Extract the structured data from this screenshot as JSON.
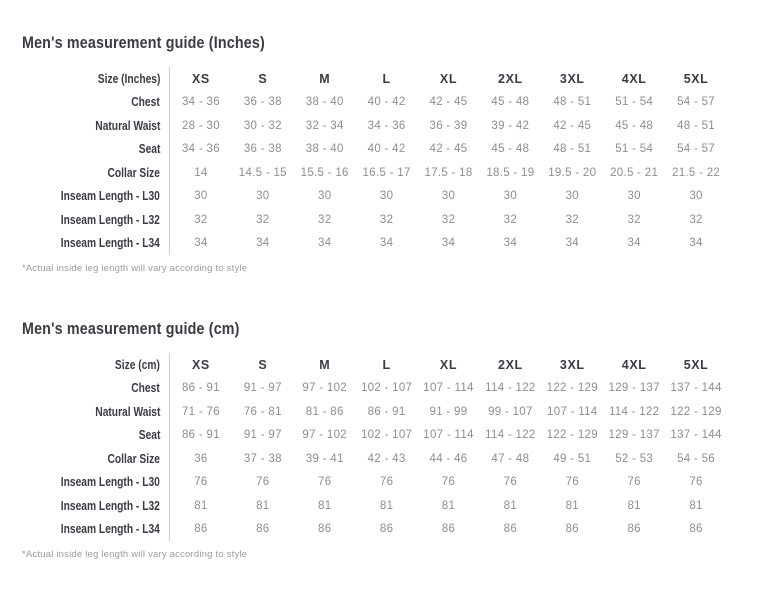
{
  "colors": {
    "title_text": "#3b3b45",
    "header_text": "#3b3b44",
    "value_text": "#8d8d94",
    "divider_line": "#cfd0d4",
    "footnote_text": "#9c9ca2",
    "background": "#ffffff"
  },
  "tables": [
    {
      "title": "Men's measurement guide (Inches)",
      "size_label": "Size (Inches)",
      "columns": [
        "XS",
        "S",
        "M",
        "L",
        "XL",
        "2XL",
        "3XL",
        "4XL",
        "5XL"
      ],
      "rows": [
        {
          "label": "Chest",
          "values": [
            "34 - 36",
            "36 - 38",
            "38 - 40",
            "40 - 42",
            "42 - 45",
            "45 - 48",
            "48 - 51",
            "51 - 54",
            "54 - 57"
          ]
        },
        {
          "label": "Natural Waist",
          "values": [
            "28 - 30",
            "30 - 32",
            "32 - 34",
            "34 - 36",
            "36 - 39",
            "39 - 42",
            "42 - 45",
            "45 - 48",
            "48 - 51"
          ]
        },
        {
          "label": "Seat",
          "values": [
            "34 - 36",
            "36 - 38",
            "38 - 40",
            "40 - 42",
            "42 - 45",
            "45 - 48",
            "48 - 51",
            "51 - 54",
            "54 - 57"
          ]
        },
        {
          "label": "Collar Size",
          "values": [
            "14",
            "14.5 - 15",
            "15.5 - 16",
            "16.5 - 17",
            "17.5 - 18",
            "18.5 - 19",
            "19.5 - 20",
            "20.5 - 21",
            "21.5 - 22"
          ]
        },
        {
          "label": "Inseam Length - L30",
          "values": [
            "30",
            "30",
            "30",
            "30",
            "30",
            "30",
            "30",
            "30",
            "30"
          ]
        },
        {
          "label": "Inseam Length - L32",
          "values": [
            "32",
            "32",
            "32",
            "32",
            "32",
            "32",
            "32",
            "32",
            "32"
          ]
        },
        {
          "label": "Inseam Length - L34",
          "values": [
            "34",
            "34",
            "34",
            "34",
            "34",
            "34",
            "34",
            "34",
            "34"
          ]
        }
      ],
      "footnote": "*Actual inside leg length will vary according to style"
    },
    {
      "title": "Men's measurement guide (cm)",
      "size_label": "Size (cm)",
      "columns": [
        "XS",
        "S",
        "M",
        "L",
        "XL",
        "2XL",
        "3XL",
        "4XL",
        "5XL"
      ],
      "rows": [
        {
          "label": "Chest",
          "values": [
            "86 - 91",
            "91 - 97",
            "97 - 102",
            "102 - 107",
            "107 - 114",
            "114 - 122",
            "122 - 129",
            "129 - 137",
            "137 - 144"
          ]
        },
        {
          "label": "Natural Waist",
          "values": [
            "71 - 76",
            "76 - 81",
            "81 - 86",
            "86 - 91",
            "91 - 99",
            "99 - 107",
            "107 - 114",
            "114 - 122",
            "122 - 129"
          ]
        },
        {
          "label": "Seat",
          "values": [
            "86 - 91",
            "91 - 97",
            "97 - 102",
            "102 - 107",
            "107 - 114",
            "114 - 122",
            "122 - 129",
            "129 - 137",
            "137 - 144"
          ]
        },
        {
          "label": "Collar Size",
          "values": [
            "36",
            "37 - 38",
            "39 - 41",
            "42 - 43",
            "44 - 46",
            "47 - 48",
            "49 - 51",
            "52 - 53",
            "54 - 56"
          ]
        },
        {
          "label": "Inseam Length - L30",
          "values": [
            "76",
            "76",
            "76",
            "76",
            "76",
            "76",
            "76",
            "76",
            "76"
          ]
        },
        {
          "label": "Inseam Length - L32",
          "values": [
            "81",
            "81",
            "81",
            "81",
            "81",
            "81",
            "81",
            "81",
            "81"
          ]
        },
        {
          "label": "Inseam Length - L34",
          "values": [
            "86",
            "86",
            "86",
            "86",
            "86",
            "86",
            "86",
            "86",
            "86"
          ]
        }
      ],
      "footnote": "*Actual inside leg length will vary according to style"
    }
  ]
}
